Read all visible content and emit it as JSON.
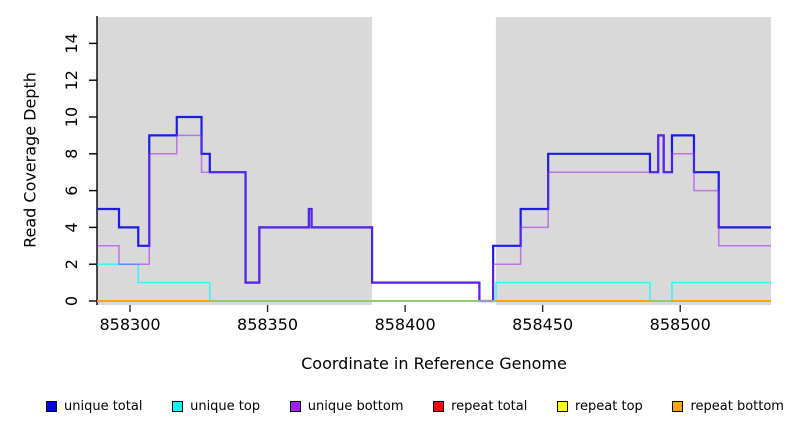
{
  "chart_data": {
    "type": "line",
    "subtype": "step-coverage",
    "title": "",
    "xlabel": "Coordinate in Reference Genome",
    "ylabel": "Read Coverage Depth",
    "xlim": [
      858288,
      858533
    ],
    "ylim": [
      0,
      15.5
    ],
    "x_ticks": [
      858300,
      858350,
      858400,
      858450,
      858500
    ],
    "y_ticks": [
      0,
      2,
      4,
      6,
      8,
      10,
      12,
      14
    ],
    "grid": false,
    "legend_position": "bottom",
    "background_panels": [
      {
        "from": 858288,
        "to": 858388
      },
      {
        "from": 858433,
        "to": 858533
      }
    ],
    "colors": {
      "panel": "#D9D9D9",
      "axis": "#000000",
      "cyan_orange_overlap_blend": "#86CE87",
      "zero_dip_blend": "#9590E5"
    },
    "series": [
      {
        "name": "unique total",
        "color": "#1C1CE8",
        "steps": [
          [
            858288,
            5
          ],
          [
            858296,
            4
          ],
          [
            858303,
            3
          ],
          [
            858307,
            9
          ],
          [
            858317,
            10
          ],
          [
            858326,
            8
          ],
          [
            858329,
            7
          ],
          [
            858342,
            1
          ],
          [
            858347,
            4
          ],
          [
            858365,
            5
          ],
          [
            858366,
            4
          ],
          [
            858388,
            1
          ],
          [
            858427,
            0
          ],
          [
            858432,
            3
          ],
          [
            858442,
            5
          ],
          [
            858452,
            8
          ],
          [
            858489,
            7
          ],
          [
            858492,
            9
          ],
          [
            858494,
            7
          ],
          [
            858497,
            9
          ],
          [
            858505,
            7
          ],
          [
            858514,
            4
          ]
        ]
      },
      {
        "name": "unique top",
        "color": "#00FFFF",
        "steps": [
          [
            858288,
            2
          ],
          [
            858303,
            1
          ],
          [
            858329,
            0
          ],
          [
            858433,
            1
          ],
          [
            858489,
            0
          ],
          [
            858497,
            1
          ]
        ]
      },
      {
        "name": "unique bottom",
        "color": "#A020F0",
        "steps": [
          [
            858288,
            3
          ],
          [
            858296,
            2
          ],
          [
            858307,
            8
          ],
          [
            858317,
            9
          ],
          [
            858326,
            7
          ],
          [
            858342,
            1
          ],
          [
            858347,
            4
          ],
          [
            858365,
            5
          ],
          [
            858366,
            4
          ],
          [
            858388,
            1
          ],
          [
            858427,
            0
          ],
          [
            858432,
            2
          ],
          [
            858442,
            4
          ],
          [
            858452,
            7
          ],
          [
            858492,
            9
          ],
          [
            858494,
            7
          ],
          [
            858497,
            8
          ],
          [
            858505,
            6
          ],
          [
            858514,
            3
          ]
        ]
      },
      {
        "name": "repeat total",
        "color": "#FF0000",
        "steps": [
          [
            858288,
            0
          ]
        ]
      },
      {
        "name": "repeat top",
        "color": "#FFFF00",
        "steps": [
          [
            858288,
            0
          ]
        ]
      },
      {
        "name": "repeat bottom",
        "color": "#FFA500",
        "steps": [
          [
            858288,
            0
          ]
        ]
      }
    ],
    "legend": [
      {
        "label": "unique total",
        "color": "#0000EE"
      },
      {
        "label": "unique top",
        "color": "#00FFFF"
      },
      {
        "label": "unique bottom",
        "color": "#A020F0"
      },
      {
        "label": "repeat total",
        "color": "#FF0000"
      },
      {
        "label": "repeat top",
        "color": "#FFFF00"
      },
      {
        "label": "repeat bottom",
        "color": "#FFA500"
      }
    ]
  }
}
